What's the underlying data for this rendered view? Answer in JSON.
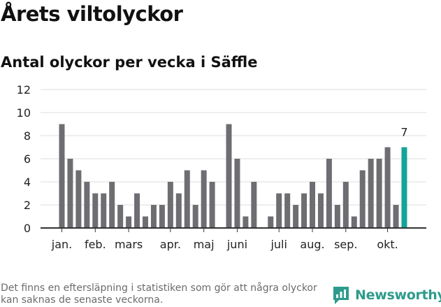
{
  "title": "Årets viltolyckor",
  "subtitle": "Antal olyckor per vecka i Säffle",
  "footnote": "Det finns en eftersläpning i statistiken som gör att några olyckor kan saknas de senaste veckorna.",
  "brand": {
    "name": "Newsworthy",
    "color": "#2d9b8b"
  },
  "colors": {
    "bar": "#6e6d72",
    "highlight": "#14a498",
    "grid": "#dddddd",
    "axis": "#333333"
  },
  "chart_data": {
    "type": "bar",
    "title": "Antal olyckor per vecka i Säffle",
    "xlabel": "",
    "ylabel": "",
    "ylim": [
      0,
      12
    ],
    "yticks": [
      0,
      2,
      4,
      6,
      8,
      10,
      12
    ],
    "weeks": [
      1,
      2,
      3,
      4,
      5,
      6,
      7,
      8,
      9,
      10,
      11,
      12,
      13,
      14,
      15,
      16,
      17,
      18,
      19,
      20,
      21,
      22,
      23,
      24,
      25,
      26,
      27,
      28,
      29,
      30,
      31,
      32,
      33,
      34,
      35,
      36,
      37,
      38,
      39,
      40,
      41,
      42
    ],
    "values": [
      9,
      6,
      5,
      4,
      3,
      3,
      4,
      2,
      1,
      3,
      1,
      2,
      2,
      4,
      3,
      5,
      2,
      5,
      4,
      null,
      9,
      6,
      1,
      4,
      null,
      1,
      3,
      3,
      2,
      3,
      4,
      3,
      6,
      2,
      4,
      1,
      5,
      6,
      6,
      7,
      2,
      7
    ],
    "highlight_index": 41,
    "highlight_label": "7",
    "month_labels": [
      {
        "label": "jan.",
        "week": 1
      },
      {
        "label": "feb.",
        "week": 5
      },
      {
        "label": "mars",
        "week": 9
      },
      {
        "label": "apr.",
        "week": 14
      },
      {
        "label": "maj",
        "week": 18
      },
      {
        "label": "juni",
        "week": 22
      },
      {
        "label": "juli",
        "week": 27
      },
      {
        "label": "aug.",
        "week": 31
      },
      {
        "label": "sep.",
        "week": 35
      },
      {
        "label": "okt.",
        "week": 40
      }
    ]
  }
}
